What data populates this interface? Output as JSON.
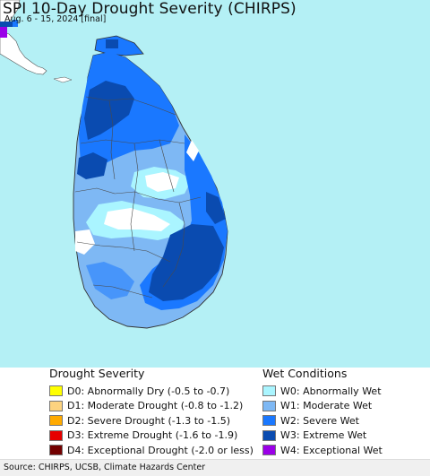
{
  "map": {
    "title": "SPI 10-Day Drought Severity (CHIRPS)",
    "subtitle": "Aug. 6 - 15, 2024 [final]",
    "ocean_color": "#b4f0f5",
    "region": "Sri Lanka"
  },
  "legend": {
    "drought": {
      "heading": "Drought Severity",
      "items": [
        {
          "label": "D0: Abnormally Dry (-0.5 to -0.7)",
          "color": "#ffff00"
        },
        {
          "label": "D1: Moderate Drought (-0.8 to -1.2)",
          "color": "#fcd37f"
        },
        {
          "label": "D2: Severe Drought (-1.3 to -1.5)",
          "color": "#ffaa00"
        },
        {
          "label": "D3: Extreme Drought (-1.6 to -1.9)",
          "color": "#e60000"
        },
        {
          "label": "D4: Exceptional Drought (-2.0 or less)",
          "color": "#730000"
        }
      ]
    },
    "wet": {
      "heading": "Wet Conditions",
      "items": [
        {
          "label": "W0: Abnormally Wet",
          "color": "#aaf5ff"
        },
        {
          "label": "W1: Moderate Wet",
          "color": "#7eb8f4"
        },
        {
          "label": "W2: Severe Wet",
          "color": "#1a78ff"
        },
        {
          "label": "W3: Extreme Wet",
          "color": "#0a4bb0"
        },
        {
          "label": "W4: Exceptional Wet",
          "color": "#9b00e8"
        }
      ]
    }
  },
  "footer": {
    "source": "Source: CHIRPS, UCSB, Climate Hazards Center"
  }
}
